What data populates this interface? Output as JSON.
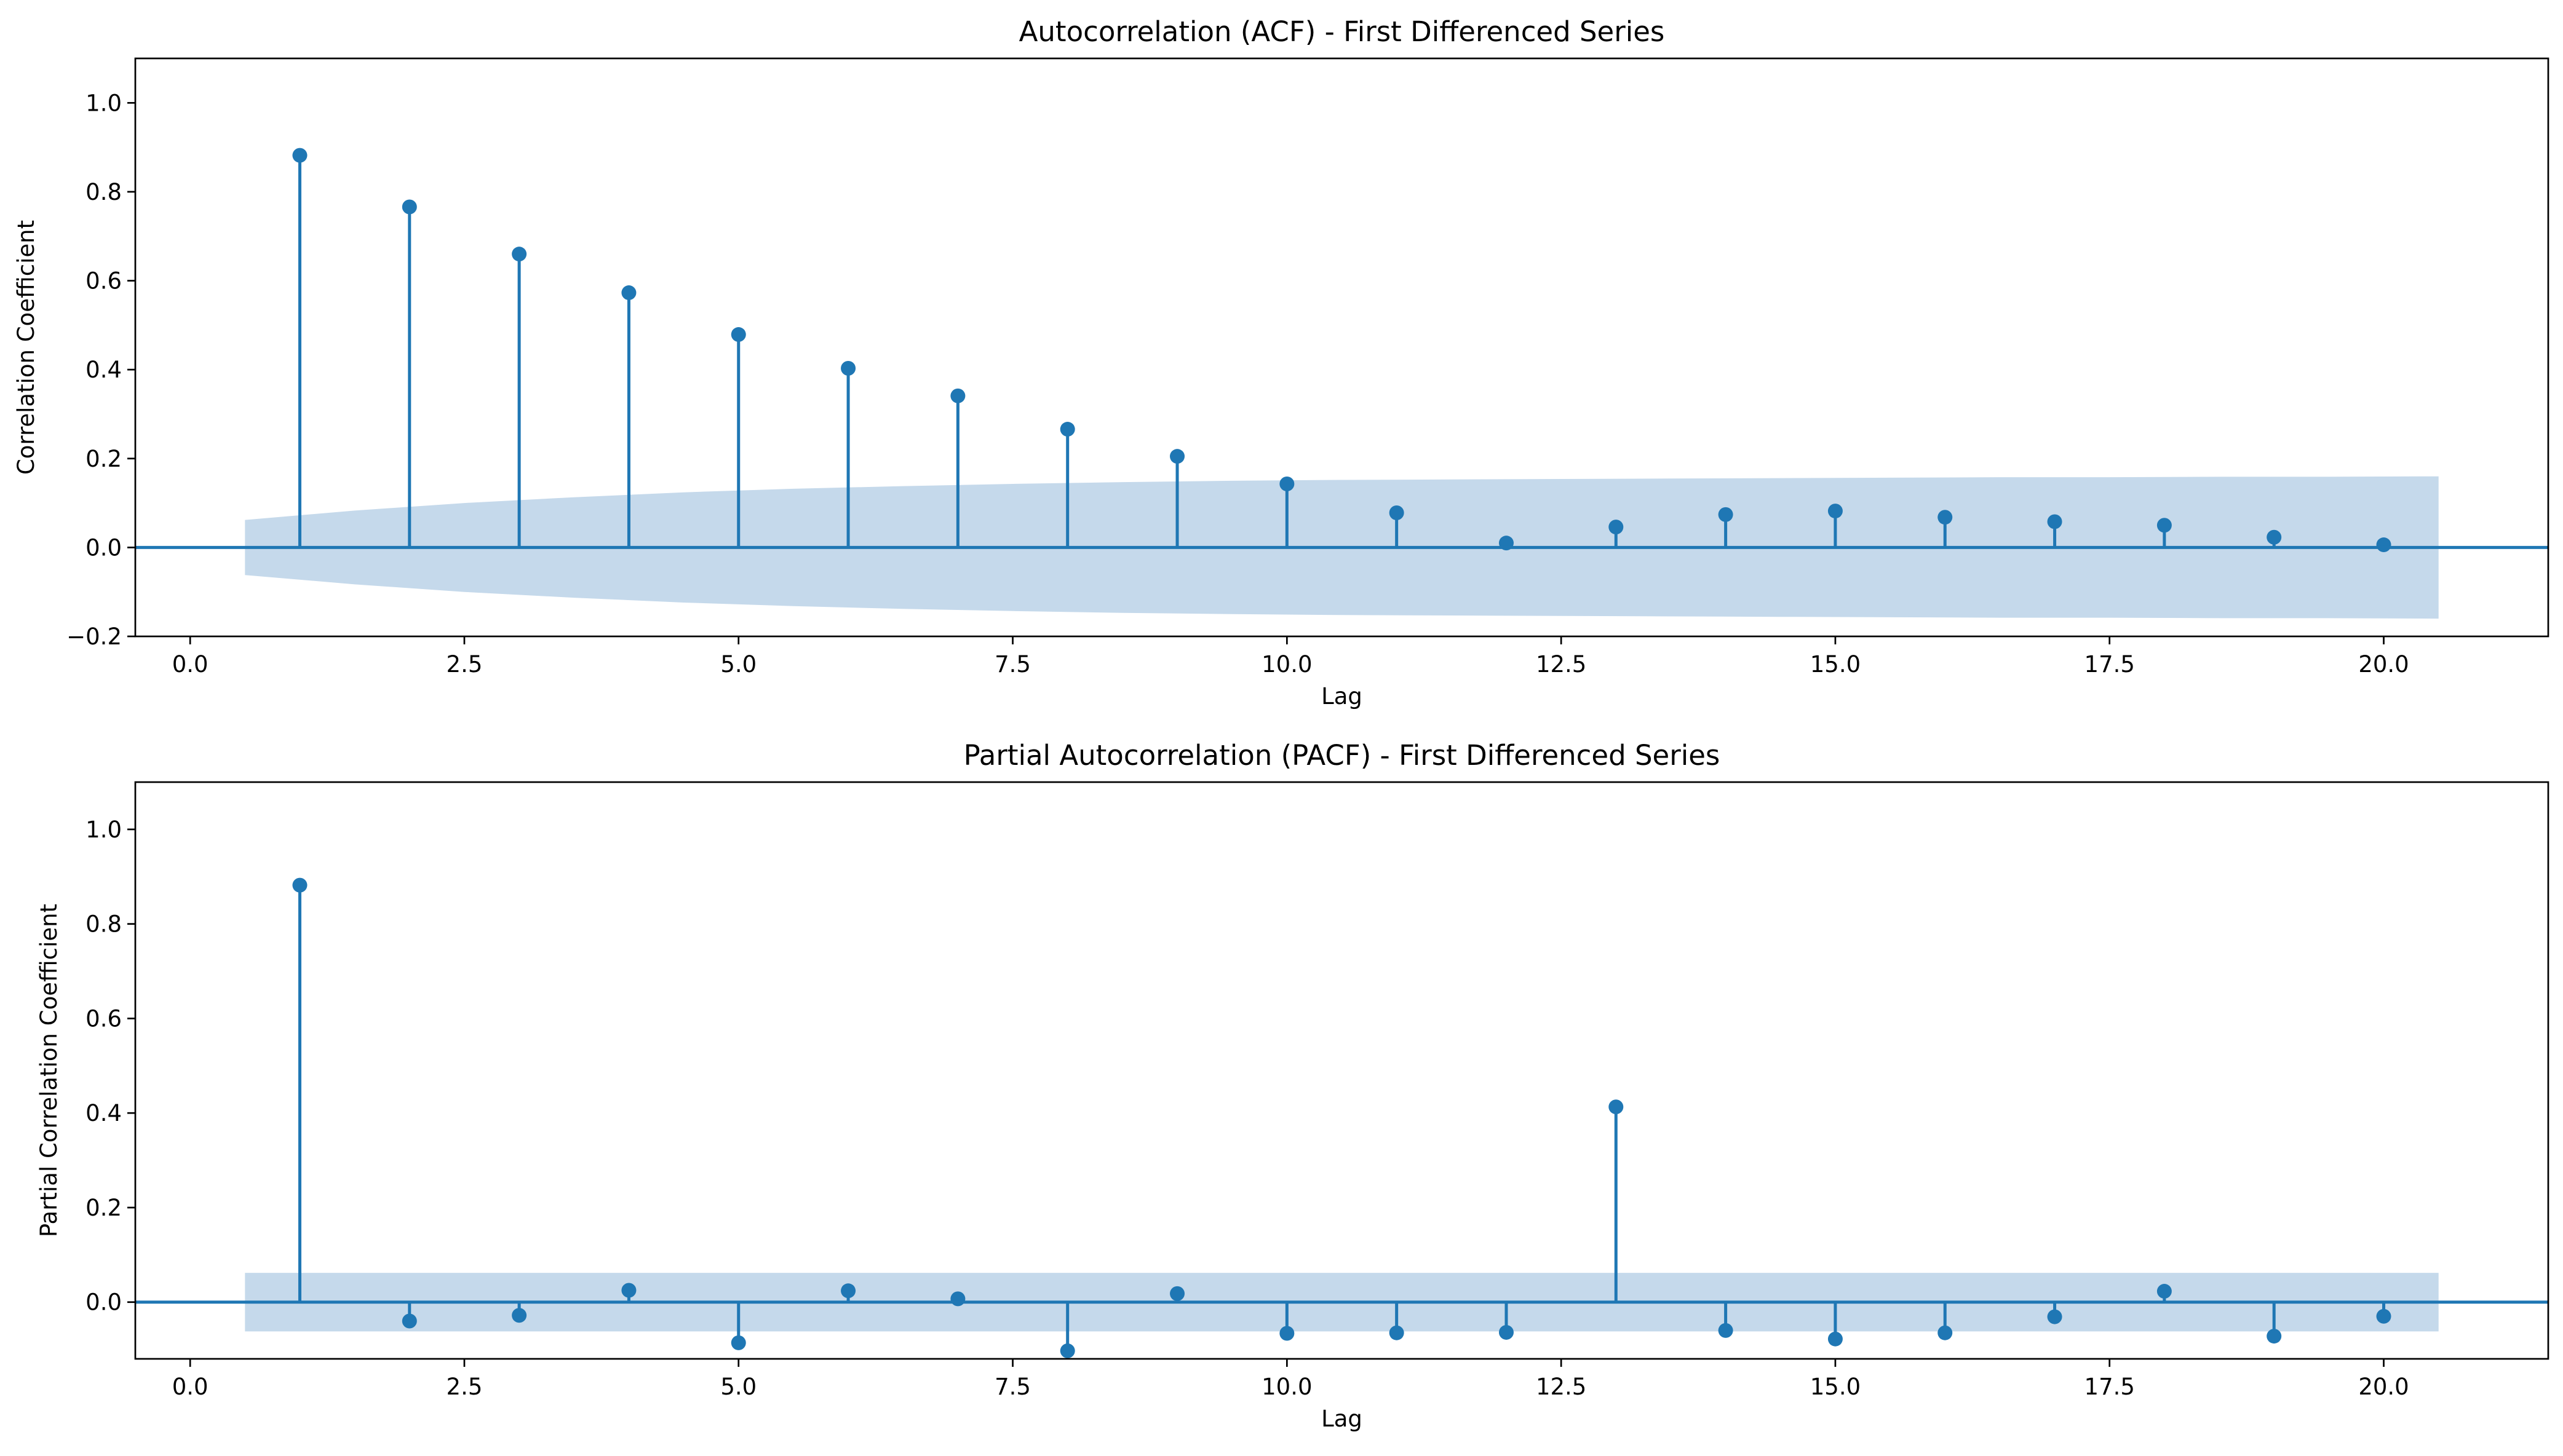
{
  "chart_data": [
    {
      "type": "stem",
      "title": "Autocorrelation (ACF) - First Differenced Series",
      "xlabel": "Lag",
      "ylabel": "Correlation Coefficient",
      "xlim": [
        -0.5,
        21.5
      ],
      "ylim": [
        -0.2,
        1.1
      ],
      "xticks": [
        "0.0",
        "2.5",
        "5.0",
        "7.5",
        "10.0",
        "12.5",
        "15.0",
        "17.5",
        "20.0"
      ],
      "xtick_values": [
        0,
        2.5,
        5,
        7.5,
        10,
        12.5,
        15,
        17.5,
        20
      ],
      "yticks": [
        "−0.2",
        "0.0",
        "0.2",
        "0.4",
        "0.6",
        "0.8",
        "1.0"
      ],
      "ytick_values": [
        -0.2,
        0,
        0.2,
        0.4,
        0.6,
        0.8,
        1.0
      ],
      "grid": false,
      "color": "#1f77b4",
      "band_color": "#c5d9eb",
      "x": [
        1,
        2,
        3,
        4,
        5,
        6,
        7,
        8,
        9,
        10,
        11,
        12,
        13,
        14,
        15,
        16,
        17,
        18,
        19,
        20
      ],
      "values": [
        0.882,
        0.766,
        0.66,
        0.573,
        0.479,
        0.403,
        0.341,
        0.266,
        0.205,
        0.143,
        0.078,
        0.01,
        0.046,
        0.074,
        0.082,
        0.068,
        0.058,
        0.05,
        0.023,
        0.006
      ],
      "confidence_band": {
        "x": [
          0.5,
          1.5,
          2.5,
          3.5,
          4.5,
          5.5,
          6.5,
          7.5,
          8.5,
          9.5,
          10.5,
          11.5,
          12.5,
          13.5,
          14.5,
          15.5,
          16.5,
          17.5,
          18.5,
          19.5,
          20.5
        ],
        "upper": [
          0.062,
          0.083,
          0.1,
          0.113,
          0.124,
          0.132,
          0.138,
          0.143,
          0.147,
          0.15,
          0.152,
          0.153,
          0.154,
          0.155,
          0.156,
          0.157,
          0.158,
          0.158,
          0.159,
          0.159,
          0.16
        ]
      }
    },
    {
      "type": "stem",
      "title": "Partial Autocorrelation (PACF) - First Differenced Series",
      "xlabel": "Lag",
      "ylabel": "Partial Correlation Coefficient",
      "xlim": [
        -0.5,
        21.5
      ],
      "ylim": [
        -0.12,
        1.1
      ],
      "xticks": [
        "0.0",
        "2.5",
        "5.0",
        "7.5",
        "10.0",
        "12.5",
        "15.0",
        "17.5",
        "20.0"
      ],
      "xtick_values": [
        0,
        2.5,
        5,
        7.5,
        10,
        12.5,
        15,
        17.5,
        20
      ],
      "yticks": [
        "0.0",
        "0.2",
        "0.4",
        "0.6",
        "0.8",
        "1.0"
      ],
      "ytick_values": [
        0,
        0.2,
        0.4,
        0.6,
        0.8,
        1.0
      ],
      "grid": false,
      "color": "#1f77b4",
      "band_color": "#c5d9eb",
      "x": [
        1,
        2,
        3,
        4,
        5,
        6,
        7,
        8,
        9,
        10,
        11,
        12,
        13,
        14,
        15,
        16,
        17,
        18,
        19,
        20
      ],
      "values": [
        0.882,
        -0.04,
        -0.028,
        0.025,
        -0.086,
        0.024,
        0.007,
        -0.103,
        0.018,
        -0.066,
        -0.065,
        -0.064,
        0.413,
        -0.06,
        -0.078,
        -0.065,
        -0.031,
        0.023,
        -0.072,
        -0.03
      ],
      "confidence_band": {
        "x": [
          0.5,
          20.5
        ],
        "upper": [
          0.062,
          0.062
        ]
      }
    }
  ]
}
